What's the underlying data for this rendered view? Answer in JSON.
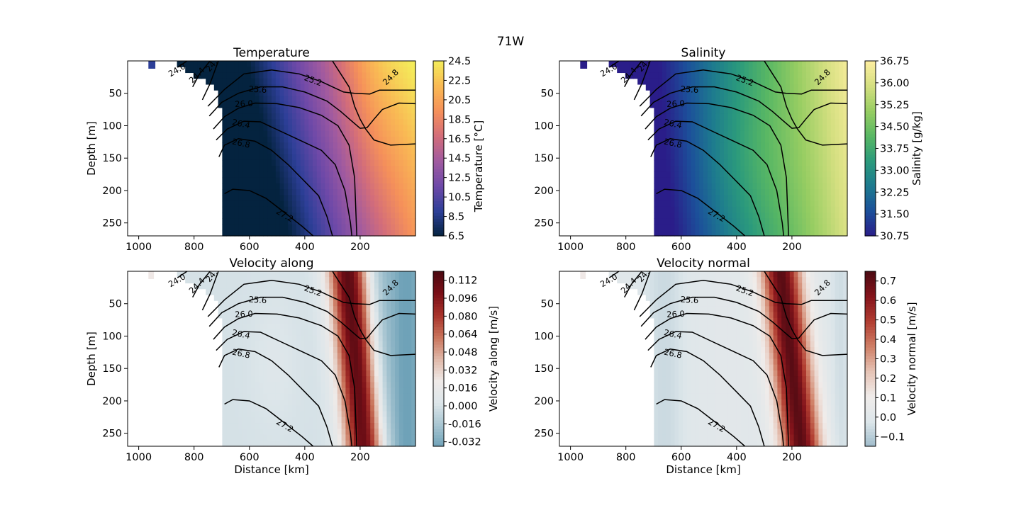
{
  "figure": {
    "suptitle": "71W"
  },
  "chart_data": [
    {
      "type": "heatmap",
      "title": "Temperature",
      "xlabel": "",
      "ylabel": "Depth [m]",
      "xlim": [
        1040,
        0
      ],
      "ylim": [
        270,
        0
      ],
      "x_ticks": [
        "1000",
        "800",
        "600",
        "400",
        "200"
      ],
      "y_ticks": [
        "50",
        "100",
        "150",
        "200",
        "250"
      ],
      "colorbar": {
        "label": "Temperature [°C]",
        "range": [
          6.5,
          24.5
        ],
        "ticks": [
          "6.5",
          "8.5",
          "10.5",
          "12.5",
          "14.5",
          "16.5",
          "18.5",
          "20.5",
          "22.5",
          "24.5"
        ],
        "colormap": "thermal",
        "colors": [
          "#04233f",
          "#2d3f98",
          "#6e49a8",
          "#a05aa0",
          "#d36d7a",
          "#f5905a",
          "#f9b954",
          "#f4ec5a"
        ]
      },
      "contours": [
        "24.0",
        "24.4",
        "24.",
        "25.2",
        "25.6",
        "26.0",
        "26.4",
        "26.8",
        "27.2",
        "24.8"
      ]
    },
    {
      "type": "heatmap",
      "title": "Salinity",
      "xlabel": "",
      "ylabel": "",
      "xlim": [
        1040,
        0
      ],
      "ylim": [
        270,
        0
      ],
      "x_ticks": [
        "1000",
        "800",
        "600",
        "400",
        "200"
      ],
      "y_ticks": [
        "50",
        "100",
        "150",
        "200",
        "250"
      ],
      "colorbar": {
        "label": "Salinity [g/kg]",
        "range": [
          30.75,
          36.75
        ],
        "ticks": [
          "30.75",
          "31.50",
          "32.25",
          "33.00",
          "33.75",
          "34.50",
          "35.25",
          "36.00",
          "36.75"
        ],
        "colormap": "haline",
        "colors": [
          "#2a1d89",
          "#1c4f9a",
          "#1d7a8f",
          "#2b9a7c",
          "#58b764",
          "#97cd62",
          "#d4df80",
          "#fdeea0"
        ]
      },
      "contours": [
        "24.0",
        "24.4",
        "24.",
        "25.2",
        "25.6",
        "26.0",
        "26.4",
        "26.8",
        "27.2",
        "24.8"
      ]
    },
    {
      "type": "heatmap",
      "title": "Velocity along",
      "xlabel": "Distance [km]",
      "ylabel": "Depth [m]",
      "xlim": [
        1040,
        0
      ],
      "ylim": [
        270,
        0
      ],
      "x_ticks": [
        "1000",
        "800",
        "600",
        "400",
        "200"
      ],
      "y_ticks": [
        "50",
        "100",
        "150",
        "200",
        "250"
      ],
      "colorbar": {
        "label": "Velocity along [m/s]",
        "range": [
          -0.036,
          0.12
        ],
        "ticks": [
          "-0.032",
          "-0.016",
          "0.000",
          "0.016",
          "0.032",
          "0.048",
          "0.064",
          "0.080",
          "0.096",
          "0.112"
        ],
        "colormap": "balance",
        "colors": [
          "#6fa2b8",
          "#a9c6d2",
          "#dde6ea",
          "#efeae8",
          "#e0b8a8",
          "#c9745b",
          "#a8332b",
          "#7a0f17",
          "#4c0a12"
        ]
      },
      "contours": [
        "24.0",
        "24.4",
        "24.",
        "25.2",
        "25.6",
        "26.0",
        "26.4",
        "26.8",
        "27.2",
        "24.8"
      ]
    },
    {
      "type": "heatmap",
      "title": "Velocity normal",
      "xlabel": "Distance [km]",
      "ylabel": "",
      "xlim": [
        1040,
        0
      ],
      "ylim": [
        270,
        0
      ],
      "x_ticks": [
        "1000",
        "800",
        "600",
        "400",
        "200"
      ],
      "y_ticks": [
        "50",
        "100",
        "150",
        "200",
        "250"
      ],
      "colorbar": {
        "label": "Velocity normal [m/s]",
        "range": [
          -0.15,
          0.75
        ],
        "ticks": [
          "−0.1",
          "0.0",
          "0.1",
          "0.2",
          "0.3",
          "0.4",
          "0.5",
          "0.6",
          "0.7"
        ],
        "colormap": "balance",
        "colors": [
          "#9fbccb",
          "#dde6ea",
          "#f0ecea",
          "#e6c3b5",
          "#cf7f66",
          "#b13d31",
          "#85141b",
          "#4c0a12"
        ]
      },
      "contours": [
        "24.0",
        "24.4",
        "24.",
        "25.2",
        "25.6",
        "26.0",
        "26.4",
        "26.8",
        "27.2",
        "24.8"
      ]
    }
  ]
}
